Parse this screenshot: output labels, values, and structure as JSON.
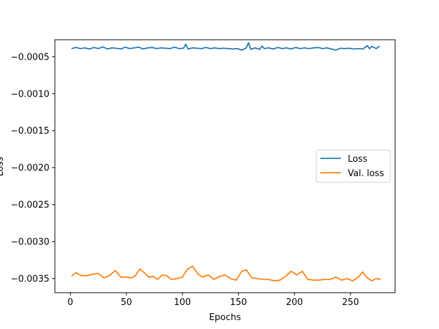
{
  "chart_data": {
    "type": "line",
    "title": "",
    "xlabel": "Epochs",
    "ylabel": "Loss",
    "xlim": [
      -13.8,
      289.8
    ],
    "ylim": [
      -0.00369,
      -0.00027
    ],
    "xticks": [
      0,
      50,
      100,
      150,
      200,
      250
    ],
    "xtick_labels": [
      "0",
      "50",
      "100",
      "150",
      "200",
      "250"
    ],
    "yticks": [
      -0.0005,
      -0.001,
      -0.0015,
      -0.002,
      -0.0025,
      -0.003,
      -0.0035
    ],
    "ytick_labels": [
      "−0.0005",
      "−0.0010",
      "−0.0015",
      "−0.0020",
      "−0.0025",
      "−0.0030",
      "−0.0035"
    ],
    "grid": false,
    "legend_position": "center-right",
    "series": [
      {
        "name": "Loss",
        "color": "#1f77b4",
        "x": [
          1,
          5,
          9,
          13,
          17,
          21,
          25,
          29,
          33,
          37,
          41,
          45,
          49,
          53,
          57,
          61,
          65,
          69,
          73,
          77,
          81,
          85,
          89,
          93,
          97,
          101,
          103,
          105,
          109,
          113,
          117,
          121,
          125,
          129,
          133,
          137,
          141,
          145,
          149,
          153,
          157,
          159,
          161,
          165,
          169,
          171,
          173,
          177,
          181,
          185,
          189,
          193,
          197,
          201,
          205,
          209,
          213,
          217,
          221,
          225,
          229,
          233,
          237,
          241,
          245,
          249,
          253,
          257,
          261,
          265,
          267,
          269,
          273,
          276
        ],
        "y": [
          -0.00039,
          -0.000375,
          -0.00039,
          -0.00038,
          -0.000395,
          -0.000375,
          -0.00039,
          -0.000365,
          -0.000395,
          -0.00038,
          -0.000385,
          -0.000395,
          -0.00037,
          -0.00039,
          -0.00038,
          -0.00037,
          -0.000395,
          -0.00038,
          -0.000375,
          -0.00039,
          -0.00038,
          -0.000385,
          -0.00039,
          -0.00037,
          -0.00039,
          -0.000385,
          -0.00033,
          -0.000395,
          -0.00038,
          -0.000385,
          -0.00039,
          -0.000375,
          -0.00039,
          -0.00038,
          -0.00039,
          -0.000385,
          -0.00039,
          -0.000395,
          -0.00039,
          -0.00041,
          -0.00038,
          -0.00031,
          -0.0004,
          -0.00038,
          -0.0004,
          -0.000355,
          -0.00039,
          -0.00038,
          -0.000395,
          -0.000375,
          -0.00039,
          -0.00038,
          -0.000395,
          -0.000375,
          -0.00039,
          -0.00038,
          -0.00039,
          -0.00038,
          -0.000375,
          -0.00039,
          -0.00038,
          -0.000395,
          -0.00041,
          -0.000385,
          -0.00039,
          -0.000385,
          -0.000395,
          -0.00039,
          -0.000395,
          -0.00035,
          -0.00039,
          -0.00036,
          -0.00039,
          -0.000355
        ]
      },
      {
        "name": "Val. loss",
        "color": "#ff7f0e",
        "x": [
          1,
          5,
          10,
          15,
          20,
          25,
          30,
          35,
          40,
          45,
          50,
          55,
          58,
          62,
          66,
          70,
          74,
          78,
          82,
          86,
          90,
          95,
          100,
          104,
          109,
          114,
          118,
          123,
          128,
          133,
          138,
          143,
          148,
          153,
          157,
          162,
          167,
          172,
          177,
          182,
          187,
          192,
          197,
          202,
          207,
          212,
          217,
          222,
          227,
          232,
          237,
          242,
          247,
          252,
          257,
          261,
          265,
          269,
          273,
          277
        ],
        "y": [
          -0.003465,
          -0.00342,
          -0.00346,
          -0.00346,
          -0.00344,
          -0.00343,
          -0.00349,
          -0.00346,
          -0.00339,
          -0.00348,
          -0.00348,
          -0.00349,
          -0.00346,
          -0.00337,
          -0.00342,
          -0.00348,
          -0.00347,
          -0.00351,
          -0.00345,
          -0.00346,
          -0.00351,
          -0.0035,
          -0.00348,
          -0.00338,
          -0.00333,
          -0.00344,
          -0.00348,
          -0.00345,
          -0.00351,
          -0.00347,
          -0.00345,
          -0.0035,
          -0.00352,
          -0.0034,
          -0.00338,
          -0.00349,
          -0.0035,
          -0.00351,
          -0.00351,
          -0.00353,
          -0.00352,
          -0.00347,
          -0.0034,
          -0.00345,
          -0.0034,
          -0.00351,
          -0.00352,
          -0.00352,
          -0.00351,
          -0.00351,
          -0.00348,
          -0.00352,
          -0.0035,
          -0.00353,
          -0.00348,
          -0.00341,
          -0.00349,
          -0.00353,
          -0.0035,
          -0.00351
        ]
      }
    ]
  }
}
